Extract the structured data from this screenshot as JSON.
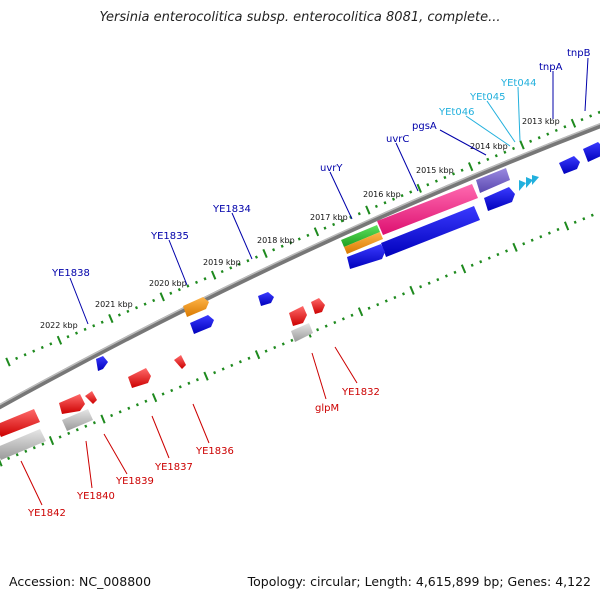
{
  "title": "Yersinia enterocolitica subsp. enterocolitica 8081, complete...",
  "footer": {
    "accession": "Accession: NC_008800",
    "summary": "Topology: circular; Length: 4,615,899 bp; Genes: 4,122"
  },
  "colors": {
    "forward_gene": "#0000ee",
    "reverse_gene": "#ee0000",
    "forward_label": "#0000aa",
    "reverse_label": "#cc0000",
    "trna_label": "#22b0dd",
    "backbone": "#808080",
    "ticks": "#1e8a1e"
  },
  "kbp_labels": [
    "2013 kbp",
    "2014 kbp",
    "2015 kbp",
    "2016 kbp",
    "2017 kbp",
    "2018 kbp",
    "2019 kbp",
    "2020 kbp",
    "2021 kbp",
    "2022 kbp"
  ],
  "forward_labels": [
    "tnpB",
    "tnpA",
    "YEt044",
    "YEt045",
    "YEt046",
    "pgsA",
    "uvrC",
    "uvrY",
    "YE1834",
    "YE1835",
    "YE1838"
  ],
  "reverse_labels": [
    "YE1832",
    "glpM",
    "YE1836",
    "YE1837",
    "YE1839",
    "YE1840",
    "YE1842"
  ]
}
